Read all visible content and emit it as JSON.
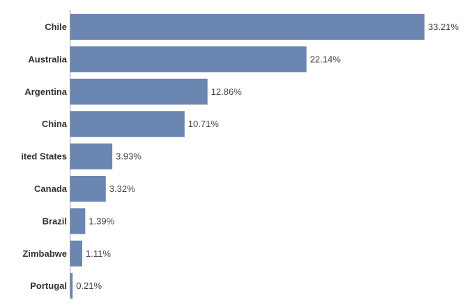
{
  "chart_data": {
    "type": "bar",
    "orientation": "horizontal",
    "categories": [
      "Chile",
      "Australia",
      "Argentina",
      "China",
      "United States",
      "Canada",
      "Brazil",
      "Zimbabwe",
      "Portugal"
    ],
    "values": [
      33.21,
      22.14,
      12.86,
      10.71,
      3.93,
      3.32,
      1.39,
      1.11,
      0.21
    ],
    "value_labels": [
      "33.21%",
      "22.14%",
      "12.86%",
      "10.71%",
      "3.93%",
      "3.32%",
      "1.39%",
      "1.11%",
      "0.21%"
    ],
    "unit": "%",
    "xlim": [
      0,
      33.21
    ],
    "title": "",
    "xlabel": "",
    "ylabel": "",
    "grid": false,
    "legend": "none",
    "colors": {
      "bar": "#6b86b1",
      "axis": "#999999",
      "category_text": "#333333",
      "value_text": "#444444"
    }
  }
}
